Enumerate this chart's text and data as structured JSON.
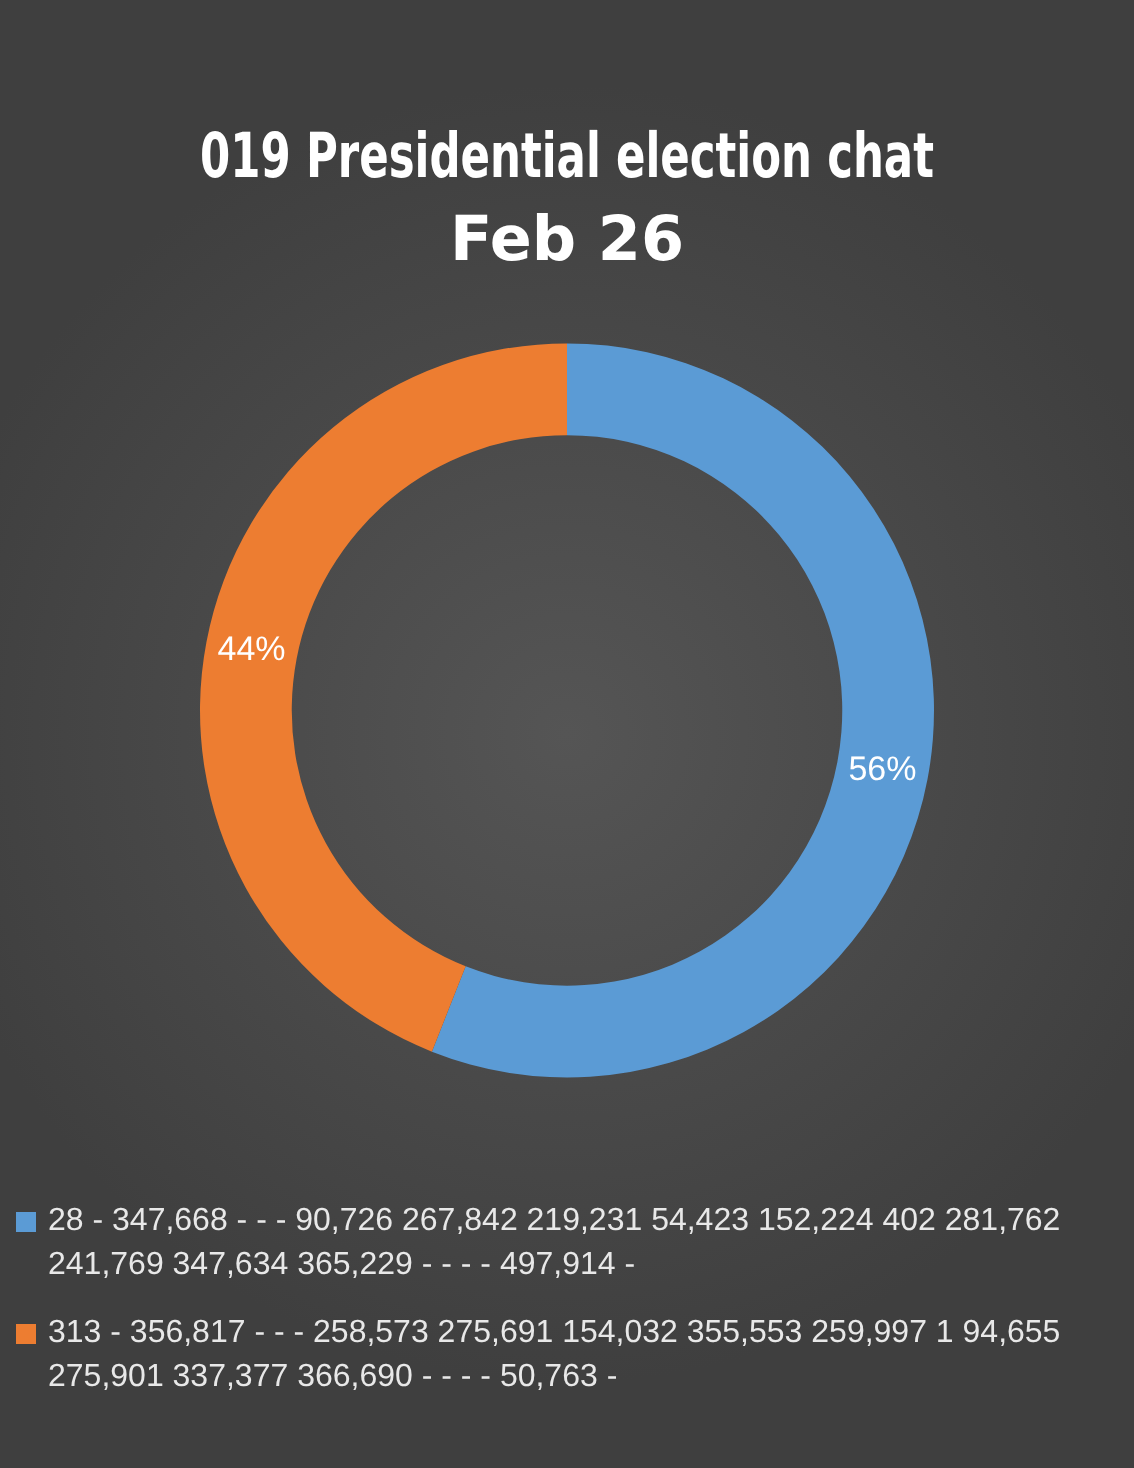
{
  "chart_data": {
    "type": "donut",
    "title": "019 Presidential election chat",
    "subtitle": "Feb 26",
    "categories": [
      "28 - 347,668 - - - 90,726 267,842 219,231 54,423 152,224 402 281,762 241,769 347,634 365,229 - - - - 497,914 -",
      "313 - 356,817 - - - 258,573 275,691 154,032 355,553 259,997 1 94,655 275,901 337,377 366,690 - - - - 50,763 -"
    ],
    "values": [
      56,
      44
    ],
    "colors": [
      "#5b9bd5",
      "#ed7d31"
    ],
    "value_labels": [
      "56%",
      "44%"
    ],
    "legend": "bottom"
  }
}
